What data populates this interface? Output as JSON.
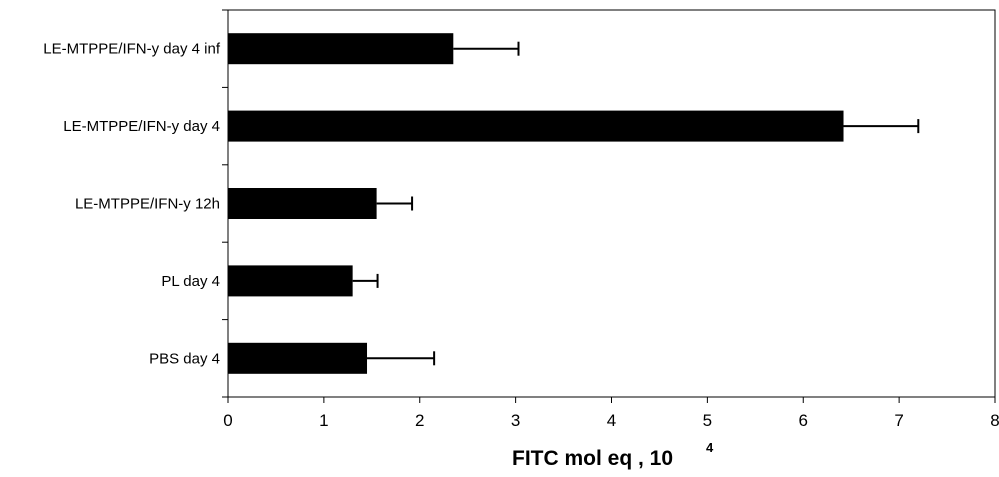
{
  "chart_data": {
    "type": "bar",
    "orientation": "horizontal",
    "title": "",
    "xlabel": "FITC mol eq , 10",
    "xlabel_superscript": "4",
    "ylabel": "",
    "xlim": [
      0,
      8
    ],
    "x_ticks": [
      "0",
      "1",
      "2",
      "3",
      "4",
      "5",
      "6",
      "7",
      "8"
    ],
    "categories": [
      "LE-MTPPE/IFN-y day 4 inf",
      "LE-MTPPE/IFN-y day 4",
      "LE-MTPPE/IFN-y  12h",
      "PL day 4",
      "PBS day 4"
    ],
    "values": [
      2.35,
      6.42,
      1.55,
      1.3,
      1.45
    ],
    "errors": [
      0.68,
      0.78,
      0.37,
      0.26,
      0.7
    ],
    "bar_color": "#000000",
    "grid": false,
    "legend": "none"
  }
}
